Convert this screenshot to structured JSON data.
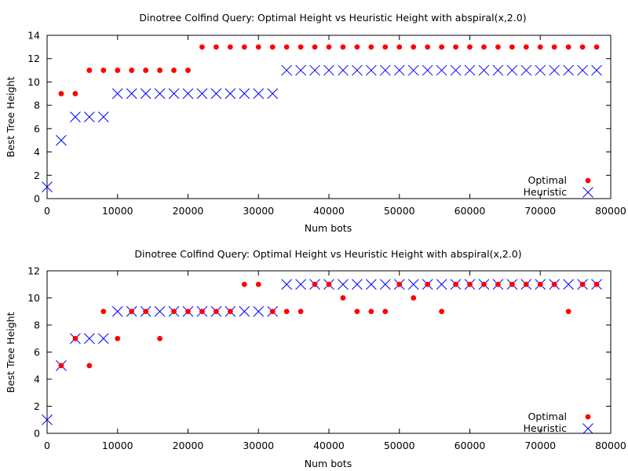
{
  "chart_data": [
    {
      "type": "scatter",
      "title": "Dinotree Colfind Query: Optimal Height vs Heuristic Height with abspiral(x,2.0)",
      "xlabel": "Num bots",
      "ylabel": "Best Tree Height",
      "xlim": [
        0,
        80000
      ],
      "ylim": [
        0,
        14
      ],
      "xticks": [
        0,
        10000,
        20000,
        30000,
        40000,
        50000,
        60000,
        70000,
        80000
      ],
      "yticks": [
        0,
        2,
        4,
        6,
        8,
        10,
        12,
        14
      ],
      "grid": false,
      "legend_position": "bottom-right",
      "series": [
        {
          "name": "Optimal",
          "marker": "dot",
          "color": "#ff0000",
          "x": [
            2000,
            4000,
            6000,
            8000,
            10000,
            12000,
            14000,
            16000,
            18000,
            20000,
            22000,
            24000,
            26000,
            28000,
            30000,
            32000,
            34000,
            36000,
            38000,
            40000,
            42000,
            44000,
            46000,
            48000,
            50000,
            52000,
            54000,
            56000,
            58000,
            60000,
            62000,
            64000,
            66000,
            68000,
            70000,
            72000,
            74000,
            76000,
            78000
          ],
          "y": [
            9,
            9,
            11,
            11,
            11,
            11,
            11,
            11,
            11,
            11,
            13,
            13,
            13,
            13,
            13,
            13,
            13,
            13,
            13,
            13,
            13,
            13,
            13,
            13,
            13,
            13,
            13,
            13,
            13,
            13,
            13,
            13,
            13,
            13,
            13,
            13,
            13,
            13,
            13
          ]
        },
        {
          "name": "Heuristic",
          "marker": "cross",
          "color": "#0000ff",
          "x": [
            0,
            2000,
            4000,
            6000,
            8000,
            10000,
            12000,
            14000,
            16000,
            18000,
            20000,
            22000,
            24000,
            26000,
            28000,
            30000,
            32000,
            34000,
            36000,
            38000,
            40000,
            42000,
            44000,
            46000,
            48000,
            50000,
            52000,
            54000,
            56000,
            58000,
            60000,
            62000,
            64000,
            66000,
            68000,
            70000,
            72000,
            74000,
            76000,
            78000
          ],
          "y": [
            1,
            5,
            7,
            7,
            7,
            9,
            9,
            9,
            9,
            9,
            9,
            9,
            9,
            9,
            9,
            9,
            9,
            11,
            11,
            11,
            11,
            11,
            11,
            11,
            11,
            11,
            11,
            11,
            11,
            11,
            11,
            11,
            11,
            11,
            11,
            11,
            11,
            11,
            11,
            11
          ]
        }
      ]
    },
    {
      "type": "scatter",
      "title": "Dinotree Colfind Query: Optimal Height vs Heuristic Height with abspiral(x,2.0)",
      "xlabel": "Num bots",
      "ylabel": "Best Tree Height",
      "xlim": [
        0,
        80000
      ],
      "ylim": [
        0,
        12
      ],
      "xticks": [
        0,
        10000,
        20000,
        30000,
        40000,
        50000,
        60000,
        70000,
        80000
      ],
      "yticks": [
        0,
        2,
        4,
        6,
        8,
        10,
        12
      ],
      "grid": false,
      "legend_position": "bottom-right",
      "series": [
        {
          "name": "Optimal",
          "marker": "dot",
          "color": "#ff0000",
          "x": [
            2000,
            4000,
            6000,
            8000,
            10000,
            12000,
            14000,
            16000,
            18000,
            20000,
            22000,
            24000,
            26000,
            28000,
            30000,
            32000,
            34000,
            36000,
            38000,
            40000,
            42000,
            44000,
            46000,
            48000,
            50000,
            52000,
            54000,
            56000,
            58000,
            60000,
            62000,
            64000,
            66000,
            68000,
            70000,
            72000,
            74000,
            76000,
            78000
          ],
          "y": [
            5,
            7,
            5,
            9,
            7,
            9,
            9,
            7,
            9,
            9,
            9,
            9,
            9,
            11,
            11,
            9,
            9,
            9,
            11,
            11,
            10,
            9,
            9,
            9,
            11,
            10,
            11,
            9,
            11,
            11,
            11,
            11,
            11,
            11,
            11,
            11,
            9,
            11,
            11
          ]
        },
        {
          "name": "Heuristic",
          "marker": "cross",
          "color": "#0000ff",
          "x": [
            0,
            2000,
            4000,
            6000,
            8000,
            10000,
            12000,
            14000,
            16000,
            18000,
            20000,
            22000,
            24000,
            26000,
            28000,
            30000,
            32000,
            34000,
            36000,
            38000,
            40000,
            42000,
            44000,
            46000,
            48000,
            50000,
            52000,
            54000,
            56000,
            58000,
            60000,
            62000,
            64000,
            66000,
            68000,
            70000,
            72000,
            74000,
            76000,
            78000
          ],
          "y": [
            1,
            5,
            7,
            7,
            7,
            9,
            9,
            9,
            9,
            9,
            9,
            9,
            9,
            9,
            9,
            9,
            9,
            11,
            11,
            11,
            11,
            11,
            11,
            11,
            11,
            11,
            11,
            11,
            11,
            11,
            11,
            11,
            11,
            11,
            11,
            11,
            11,
            11,
            11,
            11
          ]
        }
      ]
    }
  ]
}
